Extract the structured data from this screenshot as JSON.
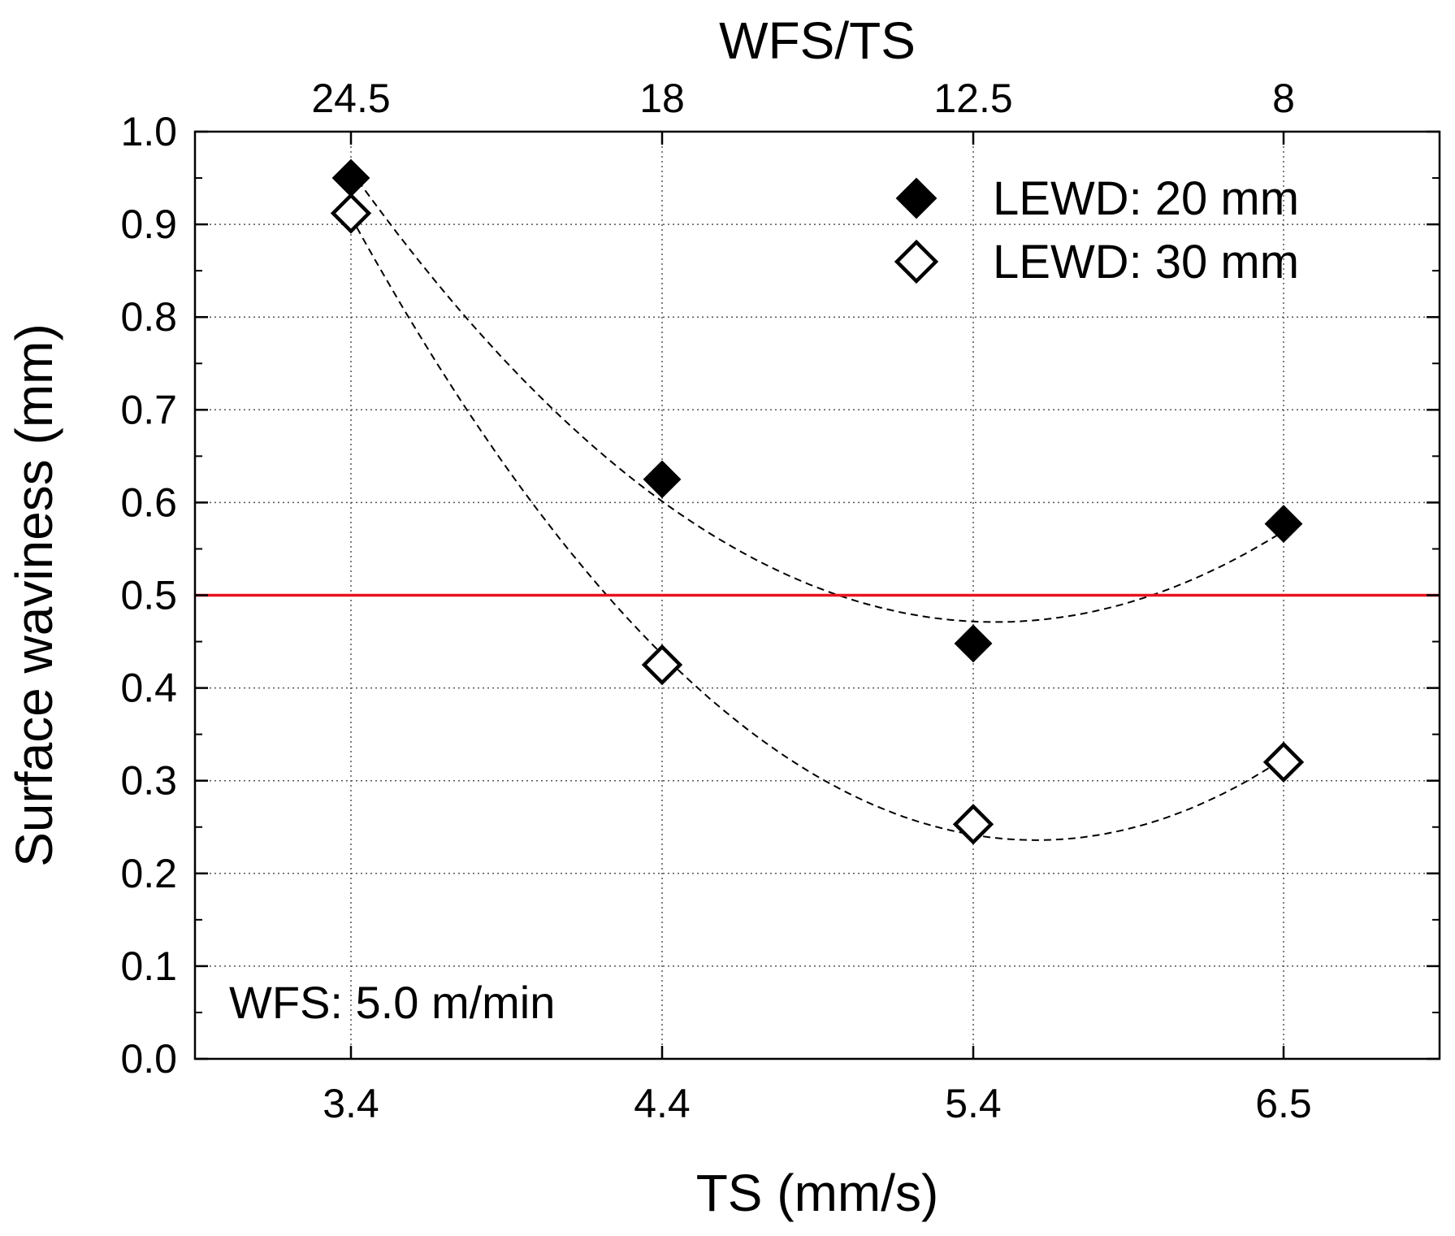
{
  "chart_data": {
    "type": "scatter",
    "title": "",
    "xlabel": "TS (mm/s)",
    "ylabel": "Surface waviness (mm)",
    "top_xlabel": "WFS/TS",
    "categories": [
      "3.4",
      "4.4",
      "5.4",
      "6.5"
    ],
    "top_categories": [
      "24.5",
      "18",
      "12.5",
      "8"
    ],
    "ylim": [
      0.0,
      1.0
    ],
    "yticks": [
      "0.0",
      "0.1",
      "0.2",
      "0.3",
      "0.4",
      "0.5",
      "0.6",
      "0.7",
      "0.8",
      "0.9",
      "1.0"
    ],
    "grid": true,
    "legend_position": "top-right",
    "series": [
      {
        "name": "LEWD: 20 mm",
        "marker": "filled-diamond",
        "values": [
          0.95,
          0.625,
          0.448,
          0.577
        ],
        "fit_curve": "dashed quadratic"
      },
      {
        "name": "LEWD: 30 mm",
        "marker": "open-diamond",
        "values": [
          0.912,
          0.425,
          0.253,
          0.32
        ],
        "fit_curve": "dashed quadratic"
      }
    ],
    "reference_line": {
      "y": 0.5,
      "color": "#e8141c"
    },
    "annotations": [
      "WFS: 5.0 m/min"
    ],
    "colors": {
      "marker": "#000000",
      "reference": "#e8141c",
      "grid": "#555555"
    }
  }
}
